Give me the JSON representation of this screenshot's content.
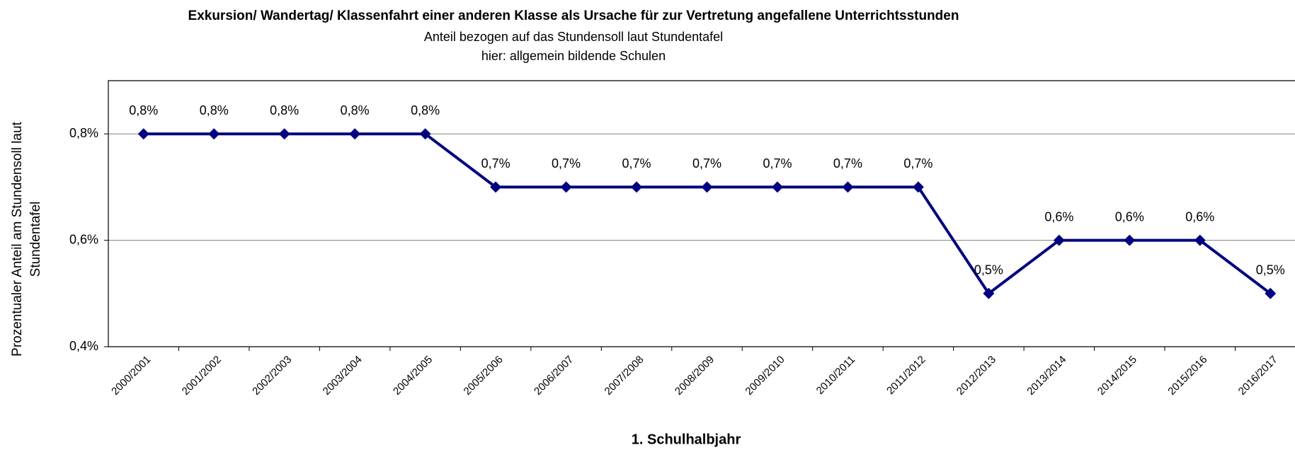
{
  "chart_data": {
    "type": "line",
    "title": "Exkursion/ Wandertag/ Klassenfahrt einer anderen Klasse als Ursache für zur Vertretung angefallene Unterrichtsstunden",
    "subtitle": [
      "Anteil bezogen auf das Stundensoll laut Stundentafel",
      "hier: allgemein bildende Schulen"
    ],
    "ylabel": [
      "Prozentualer Anteil am Stundensoll laut",
      "Stundentafel"
    ],
    "xlabel": "1. Schulhalbjahr",
    "categories": [
      "2000/2001",
      "2001/2002",
      "2002/2003",
      "2003/2004",
      "2004/2005",
      "2005/2006",
      "2006/2007",
      "2007/2008",
      "2008/2009",
      "2009/2010",
      "2010/2011",
      "2011/2012",
      "2012/2013",
      "2013/2014",
      "2014/2015",
      "2015/2016",
      "2016/2017"
    ],
    "values": [
      0.8,
      0.8,
      0.8,
      0.8,
      0.8,
      0.7,
      0.7,
      0.7,
      0.7,
      0.7,
      0.7,
      0.7,
      0.5,
      0.6,
      0.6,
      0.6,
      0.5
    ],
    "value_labels": [
      "0,8%",
      "0,8%",
      "0,8%",
      "0,8%",
      "0,8%",
      "0,7%",
      "0,7%",
      "0,7%",
      "0,7%",
      "0,7%",
      "0,7%",
      "0,7%",
      "0,5%",
      "0,6%",
      "0,6%",
      "0,6%",
      "0,5%"
    ],
    "color": "#000080",
    "ylim": [
      0.4,
      0.9
    ],
    "yticks": [
      {
        "value": 0.4,
        "label": "0,4%"
      },
      {
        "value": 0.6,
        "label": "0,6%"
      },
      {
        "value": 0.8,
        "label": "0,8%"
      }
    ],
    "grid": true
  }
}
